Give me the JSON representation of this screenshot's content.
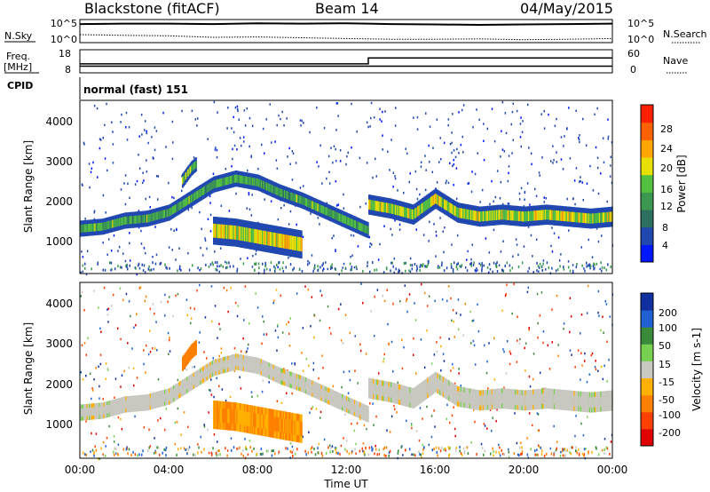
{
  "header": {
    "radar": "Blackstone (fitACF)",
    "beam": "Beam 14",
    "date": "04/May/2015"
  },
  "sidepanel": {
    "nsky_label": "N.Sky",
    "nsearch_label": "N.Search",
    "freq_label": "Freq.",
    "freq_unit": "[MHz]",
    "nave_label": "Nave",
    "cpid_label": "CPID",
    "cpid_value": "normal (fast) 151",
    "noise_ticks": [
      "10^5",
      "10^0"
    ],
    "freq_ticks": [
      "18",
      "8"
    ],
    "nave_ticks": [
      "60",
      "0"
    ]
  },
  "chart_data": [
    {
      "type": "line",
      "title": "",
      "series": [
        {
          "name": "N.Sky",
          "x": [
            0,
            2,
            4,
            6,
            8,
            10,
            12,
            13,
            14,
            16,
            18,
            20,
            22,
            24
          ],
          "values": [
            4.3,
            4.4,
            4.4,
            4.3,
            4.5,
            4.4,
            4.5,
            4.4,
            4.3,
            4.2,
            4.1,
            4.2,
            4.3,
            4.4
          ]
        },
        {
          "name": "N.Search",
          "x": [
            0,
            2,
            4,
            6,
            8,
            10,
            12,
            13,
            14,
            16,
            18,
            20,
            22,
            24
          ],
          "values": [
            1.6,
            1.4,
            1.3,
            0.9,
            1.0,
            0.8,
            0.6,
            0.5,
            0.4,
            0.4,
            0.5,
            0.3,
            0.4,
            0.6
          ]
        }
      ],
      "ylim": [
        "10^0",
        "10^5"
      ]
    },
    {
      "type": "line",
      "series": [
        {
          "name": "Freq.",
          "x": [
            0,
            13.0,
            13.0,
            24
          ],
          "values": [
            10.5,
            10.5,
            10.5,
            10.5
          ]
        },
        {
          "name": "Nave",
          "x": [
            0,
            13.0,
            13.0,
            24
          ],
          "values": [
            22,
            22,
            40,
            40
          ]
        }
      ],
      "freq_ylim": [
        8,
        18
      ],
      "nave_ylim": [
        0,
        60
      ]
    },
    {
      "type": "heatmap",
      "ylabel": "Slant Range [km]",
      "yticks": [
        "1000",
        "2000",
        "3000",
        "4000"
      ],
      "ylim": [
        180,
        4500
      ],
      "xlim": [
        0,
        24
      ],
      "colorbar_label": "Power [dB]",
      "colorbar_ticks": [
        "4",
        "8",
        "12",
        "16",
        "20",
        "24",
        "28"
      ],
      "colorbar_colors": [
        "#0018ff",
        "#2048b0",
        "#2e7060",
        "#3c9850",
        "#54c040",
        "#e8e000",
        "#ffa500",
        "#ff6000",
        "#ff2000"
      ],
      "bands": [
        {
          "x": [
            0,
            1,
            2,
            3,
            4,
            5,
            6,
            7,
            8,
            9,
            10,
            11,
            12,
            13
          ],
          "y": [
            1300,
            1350,
            1500,
            1550,
            1700,
            2050,
            2400,
            2550,
            2450,
            2200,
            2000,
            1750,
            1500,
            1250
          ],
          "width": 200,
          "power": 14
        },
        {
          "x": [
            4.6,
            4.8,
            5.0,
            5.2
          ],
          "y": [
            2500,
            2650,
            2800,
            2900
          ],
          "width": 180,
          "power": 16
        },
        {
          "x": [
            6,
            7,
            8,
            9,
            10
          ],
          "y": [
            1250,
            1200,
            1100,
            1000,
            900
          ],
          "width": 350,
          "power": 20
        },
        {
          "x": [
            13,
            14,
            15,
            16,
            17,
            18,
            19,
            20,
            21,
            22,
            23,
            24
          ],
          "y": [
            1900,
            1800,
            1650,
            2050,
            1700,
            1600,
            1650,
            1600,
            1650,
            1600,
            1550,
            1600
          ],
          "width": 250,
          "power": 18
        }
      ]
    },
    {
      "type": "heatmap",
      "xlabel": "Time UT",
      "ylabel": "Slant Range [km]",
      "xticks": [
        "00:00",
        "04:00",
        "08:00",
        "12:00",
        "16:00",
        "20:00",
        "00:00"
      ],
      "yticks": [
        "1000",
        "2000",
        "3000",
        "4000"
      ],
      "ylim": [
        180,
        4500
      ],
      "xlim": [
        0,
        24
      ],
      "colorbar_label": "Velocity [m s-1]",
      "colorbar_ticks": [
        "200",
        "100",
        "50",
        "15",
        "-15",
        "-50",
        "-100",
        "-200"
      ],
      "colorbar_colors": [
        "#1030a0",
        "#2060d0",
        "#3a8a3a",
        "#78d050",
        "#c8c8c0",
        "#ffb000",
        "#ff8000",
        "#ff4000",
        "#e00000"
      ],
      "bands": [
        {
          "x": [
            0,
            1,
            2,
            3,
            4,
            5,
            6,
            7,
            8,
            9,
            10,
            11,
            12,
            13
          ],
          "y": [
            1300,
            1350,
            1500,
            1550,
            1700,
            2050,
            2400,
            2550,
            2450,
            2200,
            2000,
            1750,
            1500,
            1250
          ],
          "width": 200,
          "velocity": 0
        },
        {
          "x": [
            4.6,
            4.8,
            5.0,
            5.2
          ],
          "y": [
            2500,
            2650,
            2800,
            2900
          ],
          "width": 180,
          "velocity": -80
        },
        {
          "x": [
            6,
            7,
            8,
            9,
            10
          ],
          "y": [
            1250,
            1200,
            1100,
            1000,
            900
          ],
          "width": 350,
          "velocity": -50
        },
        {
          "x": [
            13,
            14,
            15,
            16,
            17,
            18,
            19,
            20,
            21,
            22,
            23,
            24
          ],
          "y": [
            1900,
            1800,
            1650,
            2050,
            1700,
            1600,
            1650,
            1600,
            1650,
            1600,
            1550,
            1600
          ],
          "width": 250,
          "velocity": 0
        }
      ]
    }
  ]
}
